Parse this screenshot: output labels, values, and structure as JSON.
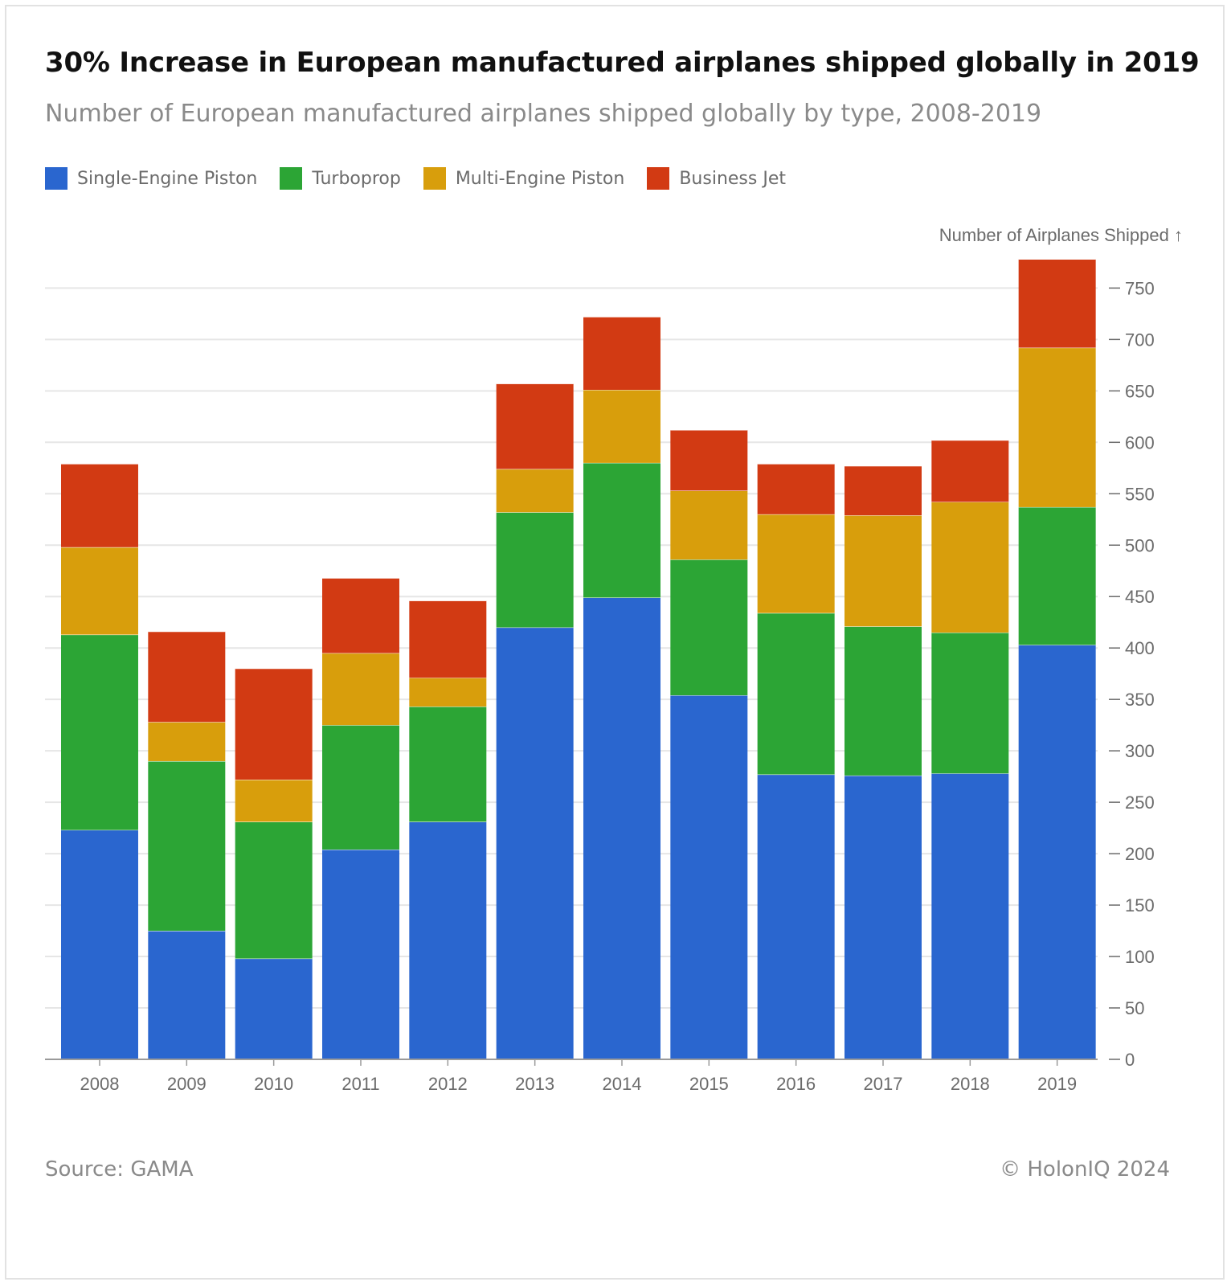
{
  "header": {
    "title": "30% Increase in European manufactured airplanes shipped globally in 2019",
    "subtitle": "Number of European manufactured airplanes shipped globally by type, 2008-2019"
  },
  "footer": {
    "source": "Source: GAMA",
    "copyright": "© HolonIQ 2024"
  },
  "chart_data": {
    "type": "bar",
    "stacked": true,
    "ylabel": "Number of Airplanes Shipped ↑",
    "ylim": [
      0,
      780
    ],
    "yticks": [
      0,
      50,
      100,
      150,
      200,
      250,
      300,
      350,
      400,
      450,
      500,
      550,
      600,
      650,
      700,
      750
    ],
    "y_axis_position": "right",
    "grid": true,
    "legend_position": "top-left",
    "categories": [
      "2008",
      "2009",
      "2010",
      "2011",
      "2012",
      "2013",
      "2014",
      "2015",
      "2016",
      "2017",
      "2018",
      "2019"
    ],
    "series": [
      {
        "name": "Single-Engine Piston",
        "color": "#2a66cf",
        "values": [
          223,
          125,
          98,
          204,
          231,
          420,
          449,
          354,
          277,
          276,
          278,
          403
        ]
      },
      {
        "name": "Turboprop",
        "color": "#2ca535",
        "values": [
          190,
          165,
          133,
          121,
          112,
          112,
          131,
          132,
          157,
          145,
          137,
          134
        ]
      },
      {
        "name": "Multi-Engine Piston",
        "color": "#d89e0c",
        "values": [
          85,
          38,
          41,
          70,
          28,
          42,
          71,
          67,
          96,
          108,
          127,
          155
        ]
      },
      {
        "name": "Business Jet",
        "color": "#d23a13",
        "values": [
          81,
          88,
          108,
          73,
          75,
          83,
          71,
          59,
          49,
          48,
          60,
          86
        ]
      }
    ]
  }
}
